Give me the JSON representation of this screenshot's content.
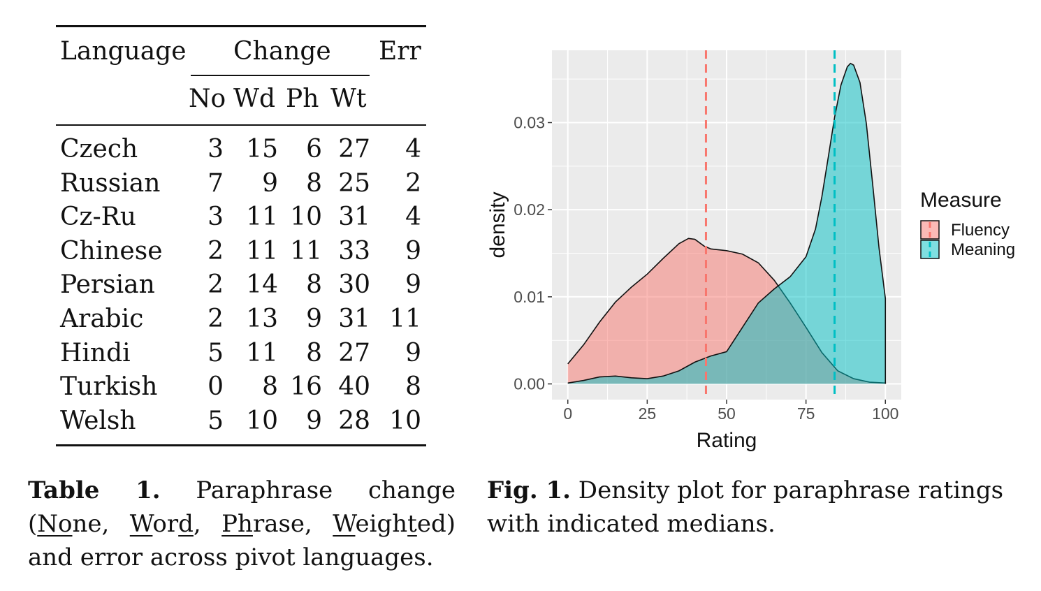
{
  "table": {
    "headers": {
      "language": "Language",
      "change": "Change",
      "err": "Err",
      "sub": [
        "No",
        "Wd",
        "Ph",
        "Wt"
      ]
    },
    "rows": [
      {
        "lang": "Czech",
        "no": "3",
        "wd": "15",
        "ph": "6",
        "wt": "27",
        "err": "4"
      },
      {
        "lang": "Russian",
        "no": "7",
        "wd": "9",
        "ph": "8",
        "wt": "25",
        "err": "2"
      },
      {
        "lang": "Cz-Ru",
        "no": "3",
        "wd": "11",
        "ph": "10",
        "wt": "31",
        "err": "4"
      },
      {
        "lang": "Chinese",
        "no": "2",
        "wd": "11",
        "ph": "11",
        "wt": "33",
        "err": "9"
      },
      {
        "lang": "Persian",
        "no": "2",
        "wd": "14",
        "ph": "8",
        "wt": "30",
        "err": "9"
      },
      {
        "lang": "Arabic",
        "no": "2",
        "wd": "13",
        "ph": "9",
        "wt": "31",
        "err": "11"
      },
      {
        "lang": "Hindi",
        "no": "5",
        "wd": "11",
        "ph": "8",
        "wt": "27",
        "err": "9"
      },
      {
        "lang": "Turkish",
        "no": "0",
        "wd": "8",
        "ph": "16",
        "wt": "40",
        "err": "8"
      },
      {
        "lang": "Welsh",
        "no": "5",
        "wd": "10",
        "ph": "9",
        "wt": "28",
        "err": "10"
      }
    ]
  },
  "table_caption": {
    "label": "Table 1.",
    "t1": "Paraphrase change (",
    "none_a": "No",
    "none_b": "ne",
    "sep1": ", ",
    "word_a": "W",
    "word_b": "or",
    "word_c": "d",
    "sep2": ", ",
    "phrase_a": "Ph",
    "phrase_b": "rase",
    "sep3": ", ",
    "weighted_a": "W",
    "weighted_b": "eigh",
    "weighted_c": "t",
    "weighted_d": "ed",
    "t2": ") and error across pivot languages."
  },
  "figure_caption": {
    "label": "Fig. 1.",
    "text": " Density plot for paraphrase ratings with indicated medians."
  },
  "chart_data": {
    "type": "area",
    "xlabel": "Rating",
    "ylabel": "density",
    "xlim": [
      -5,
      105
    ],
    "ylim": [
      -0.0018,
      0.0383
    ],
    "x_ticks": [
      0,
      25,
      50,
      75,
      100
    ],
    "x_tick_labels": [
      "0",
      "25",
      "50",
      "75",
      "100"
    ],
    "y_ticks": [
      0,
      0.01,
      0.02,
      0.03
    ],
    "y_tick_labels": [
      "0.00",
      "0.01",
      "0.02",
      "0.03"
    ],
    "grid": true,
    "legend": {
      "title": "Measure",
      "position": "right"
    },
    "series": [
      {
        "name": "Fluency",
        "color": "#F8766D",
        "median": 43.5,
        "x": [
          0,
          5,
          10,
          15,
          20,
          25,
          30,
          35,
          38,
          40,
          43,
          45,
          50,
          55,
          60,
          65,
          70,
          75,
          80,
          85,
          90,
          95,
          100
        ],
        "y": [
          0.0023,
          0.0045,
          0.0071,
          0.0094,
          0.0111,
          0.0126,
          0.0144,
          0.0161,
          0.0167,
          0.0166,
          0.0158,
          0.0155,
          0.0153,
          0.0149,
          0.0139,
          0.0119,
          0.0093,
          0.0065,
          0.0036,
          0.0015,
          0.0006,
          0.0002,
          0.0001
        ]
      },
      {
        "name": "Meaning",
        "color": "#00BFC4",
        "median": 84,
        "x": [
          0,
          5,
          10,
          15,
          20,
          25,
          30,
          35,
          40,
          45,
          50,
          55,
          60,
          65,
          70,
          75,
          78,
          80,
          82,
          84,
          86,
          88,
          89,
          90,
          92,
          94,
          96,
          98,
          100
        ],
        "y": [
          0.0001,
          0.0004,
          0.0008,
          0.0009,
          0.0007,
          0.0006,
          0.0009,
          0.0015,
          0.0025,
          0.0032,
          0.0037,
          0.0065,
          0.0093,
          0.0109,
          0.0123,
          0.0146,
          0.0178,
          0.0215,
          0.026,
          0.0306,
          0.0343,
          0.0364,
          0.0368,
          0.0366,
          0.0346,
          0.0299,
          0.0229,
          0.0156,
          0.0098
        ]
      }
    ]
  }
}
